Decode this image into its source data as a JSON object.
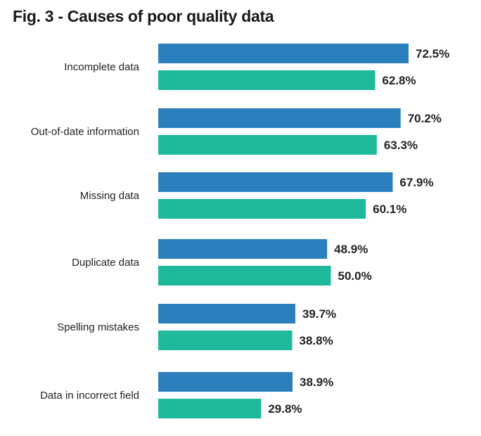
{
  "chart_data": {
    "type": "bar",
    "orientation": "horizontal",
    "title": "Fig. 3 - Causes of poor quality data",
    "categories": [
      "Incomplete data",
      "Out-of-date information",
      "Missing data",
      "Duplicate data",
      "Spelling mistakes",
      "Data in incorrect field"
    ],
    "series": [
      {
        "values": [
          72.5,
          70.2,
          67.9,
          48.9,
          39.7,
          38.9
        ],
        "color": "#2b7fbd"
      },
      {
        "values": [
          62.8,
          63.3,
          60.1,
          50.0,
          38.8,
          29.8
        ],
        "color": "#1db99a"
      }
    ],
    "value_labels": [
      [
        "72.5%",
        "70.2%",
        "67.9%",
        "48.9%",
        "39.7%",
        "38.9%"
      ],
      [
        "62.8%",
        "63.3%",
        "60.1%",
        "50.0%",
        "38.8%",
        "29.8%"
      ]
    ],
    "xlim": [
      0,
      72.5
    ],
    "grid": false,
    "legend": false
  }
}
